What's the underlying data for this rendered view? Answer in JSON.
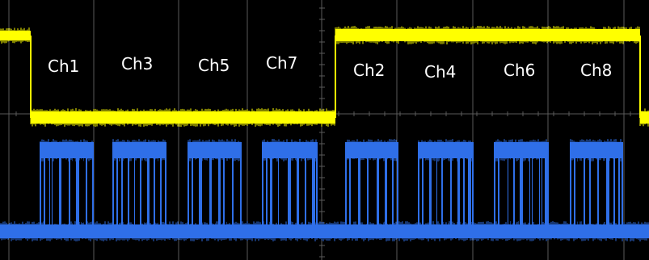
{
  "display": {
    "background": "#000000",
    "grid_color": "#5a5a5a",
    "grid": true,
    "divisions_x": 8,
    "divisions_y": 4
  },
  "traces": {
    "frame_sync": {
      "color": "#ffff00",
      "description_visible": false
    },
    "data": {
      "color": "#2f6fe8"
    }
  },
  "channel_labels": [
    "Ch1",
    "Ch3",
    "Ch5",
    "Ch7",
    "Ch2",
    "Ch4",
    "Ch6",
    "Ch8"
  ]
}
